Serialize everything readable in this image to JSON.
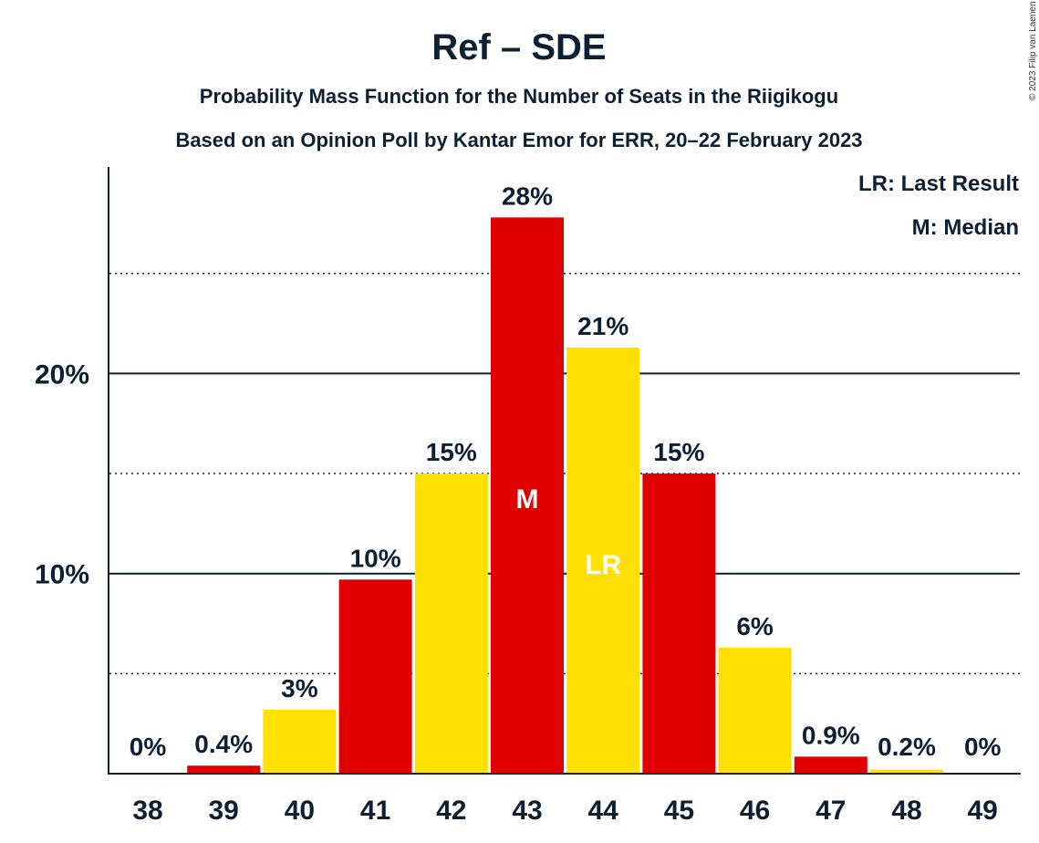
{
  "chart_data": {
    "type": "bar",
    "title": "Ref – SDE",
    "subtitle": "Probability Mass Function for the Number of Seats in the Riigikogu",
    "subtitle2": "Based on an Opinion Poll by Kantar Emor for ERR, 20–22 February 2023",
    "copyright": "© 2023 Filip van Laenen",
    "legend": [
      "LR: Last Result",
      "M: Median"
    ],
    "legend_position": "top-right",
    "categories": [
      "38",
      "39",
      "40",
      "41",
      "42",
      "43",
      "44",
      "45",
      "46",
      "47",
      "48",
      "49"
    ],
    "values": [
      0,
      0.4,
      3.2,
      9.7,
      15.0,
      27.8,
      21.3,
      15.0,
      6.3,
      0.85,
      0.2,
      0
    ],
    "labels": [
      "0%",
      "0.4%",
      "3%",
      "10%",
      "15%",
      "28%",
      "21%",
      "15%",
      "6%",
      "0.9%",
      "0.2%",
      "0%"
    ],
    "bar_colors": [
      "#e00000",
      "#e00000",
      "#ffe000",
      "#e00000",
      "#ffe000",
      "#e00000",
      "#ffe000",
      "#e00000",
      "#ffe000",
      "#e00000",
      "#ffe000",
      "#e00000"
    ],
    "markers": [
      {
        "category": "43",
        "text": "M"
      },
      {
        "category": "44",
        "text": "LR"
      }
    ],
    "yticks": [
      {
        "value": 10,
        "label": "10%"
      },
      {
        "value": 20,
        "label": "20%"
      }
    ],
    "minor_gridlines": [
      5,
      15,
      25
    ],
    "ylim": [
      0,
      30
    ],
    "xlabel": "",
    "ylabel": ""
  }
}
